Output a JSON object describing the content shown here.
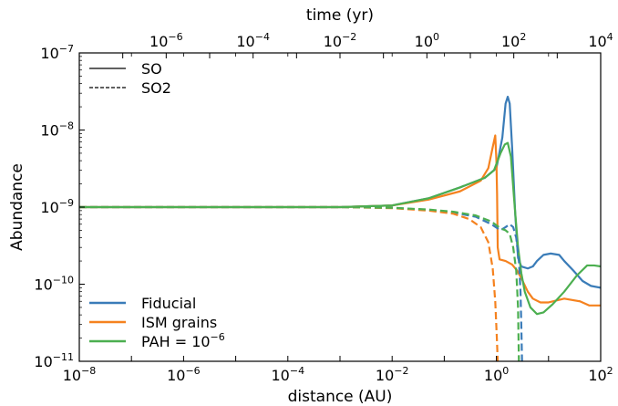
{
  "chart_data": {
    "type": "line",
    "xlabel": "distance (AU)",
    "ylabel": "Abundance",
    "top_xlabel": "time (yr)",
    "xscale": "log",
    "yscale": "log",
    "xlim": [
      1e-08,
      100
    ],
    "ylim": [
      1e-11,
      1e-07
    ],
    "top_xlim": [
      1e-08,
      10000
    ],
    "x_ticks": [
      {
        "value": 1e-08,
        "base": "10",
        "exp": "−8"
      },
      {
        "value": 1e-06,
        "base": "10",
        "exp": "−6"
      },
      {
        "value": 0.0001,
        "base": "10",
        "exp": "−4"
      },
      {
        "value": 0.01,
        "base": "10",
        "exp": "−2"
      },
      {
        "value": 1,
        "base": "10",
        "exp": "0"
      },
      {
        "value": 100,
        "base": "10",
        "exp": "2"
      }
    ],
    "y_ticks": [
      {
        "value": 1e-11,
        "base": "10",
        "exp": "−11"
      },
      {
        "value": 1e-10,
        "base": "10",
        "exp": "−10"
      },
      {
        "value": 1e-09,
        "base": "10",
        "exp": "−9"
      },
      {
        "value": 1e-08,
        "base": "10",
        "exp": "−8"
      },
      {
        "value": 1e-07,
        "base": "10",
        "exp": "−7"
      }
    ],
    "top_ticks": [
      {
        "value": 1e-06,
        "base": "10",
        "exp": "−6"
      },
      {
        "value": 0.0001,
        "base": "10",
        "exp": "−4"
      },
      {
        "value": 0.01,
        "base": "10",
        "exp": "−2"
      },
      {
        "value": 1,
        "base": "10",
        "exp": "0"
      },
      {
        "value": 100,
        "base": "10",
        "exp": "2"
      },
      {
        "value": 10000,
        "base": "10",
        "exp": "4"
      }
    ],
    "style_legend": [
      {
        "label": "SO",
        "dash": "solid"
      },
      {
        "label": "SO2",
        "dash": "dashed"
      }
    ],
    "color_legend": [
      {
        "label": "Fiducial",
        "color": "#3a7cb8"
      },
      {
        "label": "ISM grains",
        "color": "#f5821f"
      },
      {
        "label": "PAH = ",
        "label_base": "10",
        "label_exp": "−6",
        "color": "#4caf50"
      }
    ],
    "series": [
      {
        "name": "Fiducial",
        "species": "SO",
        "dash": "solid",
        "color": "#3a7cb8",
        "points": [
          [
            1e-08,
            1e-09
          ],
          [
            0.001,
            1e-09
          ],
          [
            0.01,
            1.05e-09
          ],
          [
            0.05,
            1.3e-09
          ],
          [
            0.2,
            1.8e-09
          ],
          [
            0.6,
            2.4e-09
          ],
          [
            1.0,
            3.2e-09
          ],
          [
            1.3,
            8e-09
          ],
          [
            1.5,
            2.2e-08
          ],
          [
            1.65,
            2.7e-08
          ],
          [
            1.8,
            2.2e-08
          ],
          [
            2.0,
            6e-09
          ],
          [
            2.3,
            8e-10
          ],
          [
            2.6,
            2.2e-10
          ],
          [
            3.0,
            1.7e-10
          ],
          [
            4.0,
            1.6e-10
          ],
          [
            5.0,
            1.7e-10
          ],
          [
            6.0,
            2e-10
          ],
          [
            8.0,
            2.4e-10
          ],
          [
            11,
            2.5e-10
          ],
          [
            16,
            2.4e-10
          ],
          [
            20,
            2e-10
          ],
          [
            30,
            1.5e-10
          ],
          [
            45,
            1.1e-10
          ],
          [
            65,
            9.5e-11
          ],
          [
            100,
            9e-11
          ]
        ]
      },
      {
        "name": "ISM grains",
        "species": "SO",
        "dash": "solid",
        "color": "#f5821f",
        "points": [
          [
            1e-08,
            1e-09
          ],
          [
            0.001,
            1e-09
          ],
          [
            0.01,
            1.05e-09
          ],
          [
            0.05,
            1.25e-09
          ],
          [
            0.2,
            1.6e-09
          ],
          [
            0.5,
            2.2e-09
          ],
          [
            0.7,
            3.2e-09
          ],
          [
            0.85,
            6e-09
          ],
          [
            0.95,
            8.5e-09
          ],
          [
            1.0,
            4e-09
          ],
          [
            1.03,
            1.5e-09
          ],
          [
            1.06,
            3e-10
          ],
          [
            1.15,
            2.1e-10
          ],
          [
            1.5,
            2e-10
          ],
          [
            2.0,
            1.8e-10
          ],
          [
            2.5,
            1.5e-10
          ],
          [
            3.0,
            1.2e-10
          ],
          [
            4.0,
            8e-11
          ],
          [
            5.0,
            6.5e-11
          ],
          [
            7.0,
            5.8e-11
          ],
          [
            10,
            5.8e-11
          ],
          [
            20,
            6.5e-11
          ],
          [
            40,
            6e-11
          ],
          [
            60,
            5.3e-11
          ],
          [
            100,
            5.3e-11
          ]
        ]
      },
      {
        "name": "PAH = 1e-6",
        "species": "SO",
        "dash": "solid",
        "color": "#4caf50",
        "points": [
          [
            1e-08,
            1e-09
          ],
          [
            0.001,
            1e-09
          ],
          [
            0.01,
            1.05e-09
          ],
          [
            0.05,
            1.3e-09
          ],
          [
            0.2,
            1.8e-09
          ],
          [
            0.6,
            2.4e-09
          ],
          [
            0.9,
            3e-09
          ],
          [
            1.2,
            5e-09
          ],
          [
            1.45,
            6.5e-09
          ],
          [
            1.65,
            6.8e-09
          ],
          [
            1.9,
            4.5e-09
          ],
          [
            2.2,
            1.2e-09
          ],
          [
            2.6,
            3e-10
          ],
          [
            3.0,
            1.4e-10
          ],
          [
            3.5,
            8e-11
          ],
          [
            4.5,
            5e-11
          ],
          [
            6.0,
            4.1e-11
          ],
          [
            8.0,
            4.3e-11
          ],
          [
            12,
            5.5e-11
          ],
          [
            20,
            8e-11
          ],
          [
            35,
            1.3e-10
          ],
          [
            55,
            1.75e-10
          ],
          [
            75,
            1.75e-10
          ],
          [
            100,
            1.7e-10
          ]
        ]
      },
      {
        "name": "Fiducial",
        "species": "SO2",
        "dash": "dashed",
        "color": "#3a7cb8",
        "points": [
          [
            1e-08,
            1e-09
          ],
          [
            0.001,
            1e-09
          ],
          [
            0.01,
            9.8e-10
          ],
          [
            0.05,
            9.2e-10
          ],
          [
            0.15,
            8.5e-10
          ],
          [
            0.4,
            7.5e-10
          ],
          [
            0.8,
            6e-10
          ],
          [
            1.2,
            5e-10
          ],
          [
            1.5,
            5.5e-10
          ],
          [
            1.8,
            6e-10
          ],
          [
            2.1,
            5.5e-10
          ],
          [
            2.4,
            4e-10
          ],
          [
            2.7,
            2e-10
          ],
          [
            2.9,
            8e-11
          ],
          [
            3.0,
            3e-11
          ],
          [
            3.1,
            1e-11
          ]
        ]
      },
      {
        "name": "ISM grains",
        "species": "SO2",
        "dash": "dashed",
        "color": "#f5821f",
        "points": [
          [
            1e-08,
            1e-09
          ],
          [
            0.001,
            1e-09
          ],
          [
            0.01,
            9.7e-10
          ],
          [
            0.05,
            9e-10
          ],
          [
            0.15,
            8.2e-10
          ],
          [
            0.3,
            7e-10
          ],
          [
            0.5,
            5.5e-10
          ],
          [
            0.7,
            3.5e-10
          ],
          [
            0.85,
            1.6e-10
          ],
          [
            0.95,
            6e-11
          ],
          [
            1.02,
            2e-11
          ],
          [
            1.06,
            1e-11
          ]
        ]
      },
      {
        "name": "PAH = 1e-6",
        "species": "SO2",
        "dash": "dashed",
        "color": "#4caf50",
        "points": [
          [
            1e-08,
            1e-09
          ],
          [
            0.001,
            1e-09
          ],
          [
            0.01,
            9.8e-10
          ],
          [
            0.05,
            9.3e-10
          ],
          [
            0.15,
            8.7e-10
          ],
          [
            0.4,
            7.8e-10
          ],
          [
            0.8,
            6.5e-10
          ],
          [
            1.2,
            5.3e-10
          ],
          [
            1.5,
            5e-10
          ],
          [
            1.8,
            4.5e-10
          ],
          [
            2.1,
            3e-10
          ],
          [
            2.4,
            1.5e-10
          ],
          [
            2.6,
            5e-11
          ],
          [
            2.7,
            1e-11
          ]
        ]
      }
    ]
  }
}
